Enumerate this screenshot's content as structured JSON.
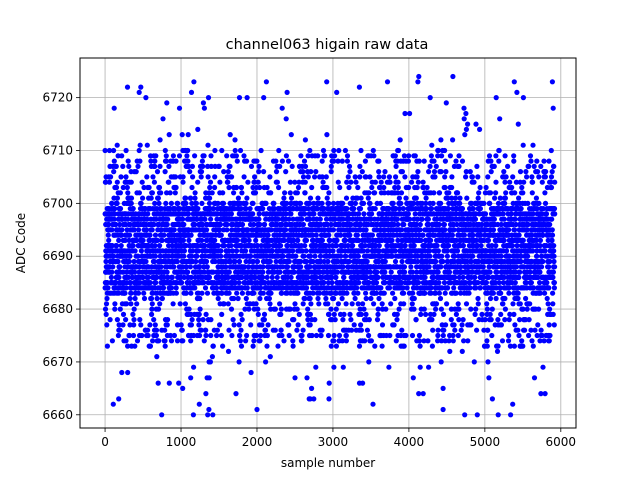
{
  "chart_data": {
    "type": "scatter",
    "title": "channel063 higain raw data",
    "xlabel": "sample number",
    "ylabel": "ADC Code",
    "xlim": [
      -330,
      6200
    ],
    "ylim": [
      6657.5,
      6727.5
    ],
    "xticks": [
      0,
      1000,
      2000,
      3000,
      4000,
      5000,
      6000
    ],
    "yticks": [
      6660,
      6670,
      6680,
      6690,
      6700,
      6710,
      6720
    ],
    "grid": true,
    "series": [
      {
        "color": "#0000ff",
        "marker": "circle",
        "x_start": 0,
        "x_end": 5920,
        "n_points": 5921,
        "dense_band": [
          6683,
          6700
        ],
        "mid_band": [
          6673,
          6710
        ],
        "sparse_band": [
          6660,
          6724
        ],
        "outliers": [
          {
            "x": 470,
            "y": 6722
          },
          {
            "x": 1770,
            "y": 6720
          },
          {
            "x": 3050,
            "y": 6721
          },
          {
            "x": 4580,
            "y": 6724
          },
          {
            "x": 4280,
            "y": 6720
          },
          {
            "x": 4900,
            "y": 6660
          },
          {
            "x": 2000,
            "y": 6661
          },
          {
            "x": 1240,
            "y": 6662
          },
          {
            "x": 180,
            "y": 6663
          },
          {
            "x": 2700,
            "y": 6663
          },
          {
            "x": 5100,
            "y": 6663
          },
          {
            "x": 4450,
            "y": 6665
          },
          {
            "x": 3350,
            "y": 6666
          },
          {
            "x": 700,
            "y": 6666
          },
          {
            "x": 5900,
            "y": 6718
          },
          {
            "x": 120,
            "y": 6718
          },
          {
            "x": 980,
            "y": 6718
          },
          {
            "x": 4750,
            "y": 6717
          }
        ]
      }
    ]
  }
}
